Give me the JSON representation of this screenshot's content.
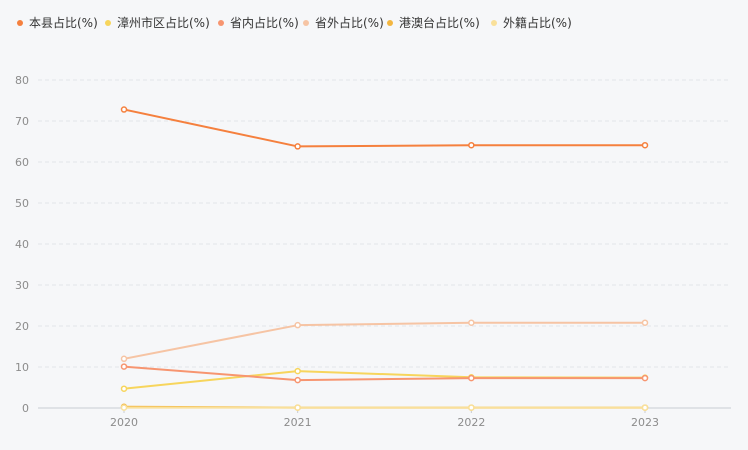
{
  "chart_data": {
    "type": "line",
    "categories": [
      "2020",
      "2021",
      "2022",
      "2023"
    ],
    "ylim": [
      0,
      80
    ],
    "yticks": [
      0,
      10,
      20,
      30,
      40,
      50,
      60,
      70,
      80
    ],
    "grid": "horizontal dashed",
    "legend_position": "top-left",
    "series": [
      {
        "name": "本县占比(%)",
        "color": "#f5803e",
        "values": [
          72.8,
          63.8,
          64.1,
          64.1
        ]
      },
      {
        "name": "漳州市区占比(%)",
        "color": "#f7d55c",
        "values": [
          4.7,
          9.0,
          7.5,
          7.4
        ]
      },
      {
        "name": "省内占比(%)",
        "color": "#f79570",
        "values": [
          10.1,
          6.8,
          7.3,
          7.3
        ]
      },
      {
        "name": "省外占比(%)",
        "color": "#f6c4a4",
        "values": [
          12.0,
          20.2,
          20.8,
          20.8
        ]
      },
      {
        "name": "港澳台占比(%)",
        "color": "#f3b640",
        "values": [
          0.3,
          0.1,
          0.1,
          0.1
        ]
      },
      {
        "name": "外籍占比(%)",
        "color": "#f9e09a",
        "values": [
          0.1,
          0.1,
          0.1,
          0.1
        ]
      }
    ]
  }
}
